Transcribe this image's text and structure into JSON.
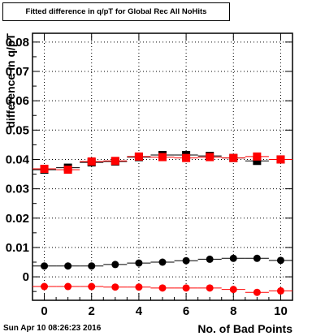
{
  "title": "Fitted difference in q/pT for Global Rec All NoHits",
  "footer": "Sun Apr 10 08:26:23 2016",
  "chart_data": {
    "type": "scatter",
    "title": "Fitted difference in q/pT for Global Rec All NoHits",
    "xlabel": "No. of Bad Points",
    "ylabel": "difference in q/pT",
    "xlim": [
      -0.5,
      10.5
    ],
    "ylim": [
      -0.008,
      0.083
    ],
    "grid": true,
    "xticks": [
      0,
      2,
      4,
      6,
      8,
      10
    ],
    "yticks": [
      0,
      0.01,
      0.02,
      0.03,
      0.04,
      0.05,
      0.06,
      0.07,
      0.08
    ],
    "ytick_labels": [
      "0",
      "0.01",
      "0.02",
      "0.03",
      "0.04",
      "0.05",
      "0.06",
      "0.07",
      "0.08"
    ],
    "series": [
      {
        "color": "#000000",
        "marker": "circle",
        "x": [
          0,
          1,
          2,
          3,
          4,
          5,
          6,
          7,
          8,
          9,
          10
        ],
        "y": [
          0.0037,
          0.0037,
          0.0037,
          0.0042,
          0.0047,
          0.005,
          0.0055,
          0.006,
          0.0063,
          0.0063,
          0.0056
        ]
      },
      {
        "color": "#ff0000",
        "marker": "circle",
        "x": [
          0,
          1,
          2,
          3,
          4,
          5,
          6,
          7,
          8,
          9,
          10
        ],
        "y": [
          -0.0033,
          -0.0033,
          -0.0033,
          -0.0035,
          -0.0035,
          -0.0038,
          -0.0038,
          -0.0038,
          -0.0043,
          -0.0053,
          -0.0048
        ]
      },
      {
        "color": "#000000",
        "marker": "square",
        "x": [
          0,
          1,
          2,
          3,
          4,
          5,
          6,
          7,
          8,
          9,
          10
        ],
        "y": [
          0.0365,
          0.0372,
          0.039,
          0.0393,
          0.0408,
          0.0415,
          0.0415,
          0.0412,
          0.0405,
          0.0395,
          0.04
        ]
      },
      {
        "color": "#ff0000",
        "marker": "square",
        "x": [
          0,
          1,
          2,
          3,
          4,
          5,
          6,
          7,
          8,
          9,
          10
        ],
        "y": [
          0.0368,
          0.0365,
          0.0393,
          0.0395,
          0.041,
          0.0408,
          0.0405,
          0.0408,
          0.0405,
          0.041,
          0.04
        ]
      }
    ]
  }
}
